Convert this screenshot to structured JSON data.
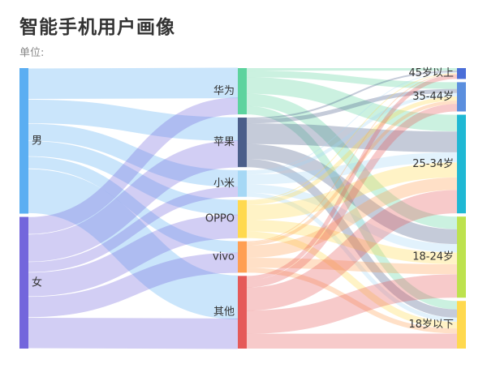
{
  "chart_data": {
    "type": "sankey",
    "title": "智能手机用户画像",
    "subtitle": "单位:",
    "nodes": [
      {
        "name": "男",
        "color": "#5BAEF2",
        "level": 0
      },
      {
        "name": "女",
        "color": "#7366DC",
        "level": 0
      },
      {
        "name": "华为",
        "color": "#5DD39E",
        "level": 1
      },
      {
        "name": "苹果",
        "color": "#4B5E8A",
        "level": 1
      },
      {
        "name": "小米",
        "color": "#A6D8F5",
        "level": 1
      },
      {
        "name": "OPPO",
        "color": "#FFD94F",
        "level": 1
      },
      {
        "name": "vivo",
        "color": "#FF9F52",
        "level": 1
      },
      {
        "name": "其他",
        "color": "#E55A59",
        "level": 1
      },
      {
        "name": "45岁以上",
        "color": "#4A6ED8",
        "level": 2
      },
      {
        "name": "35-44岁",
        "color": "#5B8FDE",
        "level": 2
      },
      {
        "name": "25-34岁",
        "color": "#1FB8D4",
        "level": 2
      },
      {
        "name": "18-24岁",
        "color": "#BDE24E",
        "level": 2
      },
      {
        "name": "18岁以下",
        "color": "#FFD94F",
        "level": 2
      }
    ],
    "links": [
      {
        "source": "男",
        "target": "华为",
        "value": 36
      },
      {
        "source": "男",
        "target": "苹果",
        "value": 28
      },
      {
        "source": "男",
        "target": "小米",
        "value": 20
      },
      {
        "source": "男",
        "target": "OPPO",
        "value": 18
      },
      {
        "source": "男",
        "target": "vivo",
        "value": 14
      },
      {
        "source": "男",
        "target": "其他",
        "value": 52
      },
      {
        "source": "女",
        "target": "华为",
        "value": 20
      },
      {
        "source": "女",
        "target": "苹果",
        "value": 32
      },
      {
        "source": "女",
        "target": "小米",
        "value": 12
      },
      {
        "source": "女",
        "target": "OPPO",
        "value": 28
      },
      {
        "source": "女",
        "target": "vivo",
        "value": 24
      },
      {
        "source": "女",
        "target": "其他",
        "value": 36
      },
      {
        "source": "华为",
        "target": "45岁以上",
        "value": 3
      },
      {
        "source": "华为",
        "target": "35-44岁",
        "value": 8
      },
      {
        "source": "华为",
        "target": "25-34岁",
        "value": 20
      },
      {
        "source": "华为",
        "target": "18-24岁",
        "value": 15
      },
      {
        "source": "华为",
        "target": "18岁以下",
        "value": 10
      },
      {
        "source": "苹果",
        "target": "45岁以上",
        "value": 2
      },
      {
        "source": "苹果",
        "target": "35-44岁",
        "value": 5
      },
      {
        "source": "苹果",
        "target": "25-34岁",
        "value": 25
      },
      {
        "source": "苹果",
        "target": "18-24岁",
        "value": 18
      },
      {
        "source": "苹果",
        "target": "18岁以下",
        "value": 10
      },
      {
        "source": "小米",
        "target": "45岁以上",
        "value": 1
      },
      {
        "source": "小米",
        "target": "35-44岁",
        "value": 4
      },
      {
        "source": "小米",
        "target": "25-34岁",
        "value": 12
      },
      {
        "source": "小米",
        "target": "18-24岁",
        "value": 10
      },
      {
        "source": "小米",
        "target": "18岁以下",
        "value": 5
      },
      {
        "source": "OPPO",
        "target": "45岁以上",
        "value": 1
      },
      {
        "source": "OPPO",
        "target": "35-44岁",
        "value": 5
      },
      {
        "source": "OPPO",
        "target": "25-34岁",
        "value": 18
      },
      {
        "source": "OPPO",
        "target": "18-24岁",
        "value": 14
      },
      {
        "source": "OPPO",
        "target": "18岁以下",
        "value": 8
      },
      {
        "source": "vivo",
        "target": "45岁以上",
        "value": 1
      },
      {
        "source": "vivo",
        "target": "35-44岁",
        "value": 4
      },
      {
        "source": "vivo",
        "target": "25-34岁",
        "value": 15
      },
      {
        "source": "vivo",
        "target": "18-24岁",
        "value": 12
      },
      {
        "source": "vivo",
        "target": "18岁以下",
        "value": 6
      },
      {
        "source": "其他",
        "target": "45岁以上",
        "value": 5
      },
      {
        "source": "其他",
        "target": "35-44岁",
        "value": 9
      },
      {
        "source": "其他",
        "target": "25-34岁",
        "value": 28
      },
      {
        "source": "其他",
        "target": "18-24岁",
        "value": 28
      },
      {
        "source": "其他",
        "target": "18岁以下",
        "value": 18
      }
    ]
  }
}
